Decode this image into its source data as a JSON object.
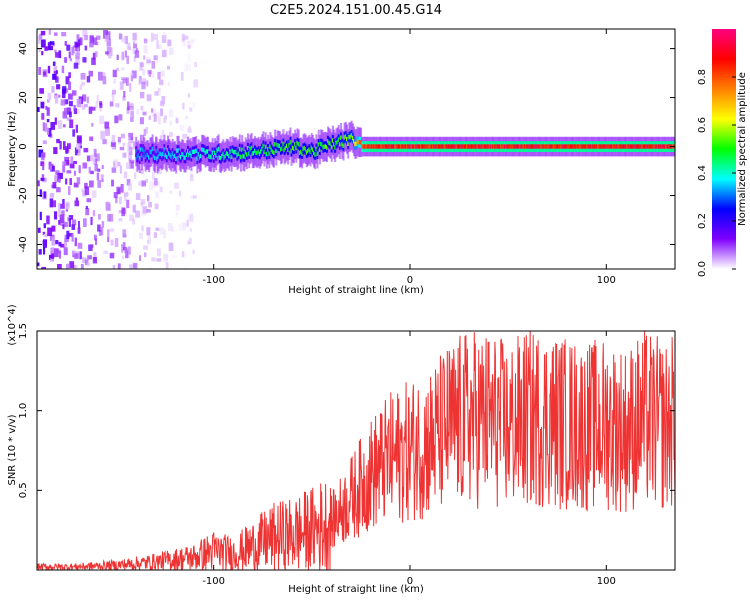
{
  "title": "C2E5.2024.151.00.45.G14",
  "chart_data": [
    {
      "type": "heatmap",
      "xlabel": "Height of straight line (km)",
      "ylabel": "Frequency (Hz)",
      "xlim": [
        -190,
        135
      ],
      "ylim": [
        -50,
        48
      ],
      "x_ticks": [
        "-100",
        "0",
        "100"
      ],
      "y_ticks": [
        "40",
        "20",
        "0",
        "-20",
        "-40"
      ],
      "colorbar": {
        "label": "Normalized spectral amplitude",
        "range": [
          0,
          1
        ],
        "ticks": [
          "0.0",
          "0.2",
          "0.4",
          "0.6",
          "0.8"
        ],
        "colors": [
          "#ffffff",
          "#7f00ff",
          "#0000ff",
          "#00ffff",
          "#00ff00",
          "#ffff00",
          "#ff8000",
          "#ff0000",
          "#ff0080"
        ]
      },
      "track": {
        "x": [
          -140,
          -120,
          -100,
          -80,
          -60,
          -50,
          -40,
          -30,
          -25,
          -20,
          -10,
          0,
          10,
          20,
          50,
          60,
          90,
          100,
          110,
          135
        ],
        "y": [
          -3,
          -3,
          -3,
          -2,
          0,
          -2,
          1,
          3,
          0,
          0,
          0,
          0,
          0,
          0,
          0,
          0,
          0,
          0,
          0,
          0
        ],
        "amplitude": [
          0.35,
          0.4,
          0.45,
          0.5,
          0.55,
          0.55,
          0.55,
          0.6,
          0.9,
          0.95,
          0.95,
          0.95,
          0.95,
          0.95,
          0.95,
          0.95,
          0.95,
          0.95,
          0.95,
          0.95
        ]
      },
      "noise_region_x": [
        -190,
        -110
      ],
      "grid": false
    },
    {
      "type": "line",
      "xlabel": "Height of straight line (km)",
      "ylabel": "SNR (10 * v/v)",
      "multiplier": "(x10^4)",
      "xlim": [
        -190,
        135
      ],
      "ylim": [
        0,
        1.5
      ],
      "x_ticks": [
        "-100",
        "0",
        "100"
      ],
      "y_ticks": [
        "1.5",
        "1.0",
        "0.5"
      ],
      "color": "#ee3333",
      "x": [
        -190,
        -170,
        -150,
        -130,
        -110,
        -100,
        -90,
        -80,
        -70,
        -60,
        -50,
        -40,
        -30,
        -20,
        -10,
        0,
        10,
        20,
        30,
        40,
        50,
        60,
        70,
        80,
        90,
        100,
        110,
        120,
        130,
        135
      ],
      "y": [
        0.02,
        0.02,
        0.03,
        0.05,
        0.08,
        0.12,
        0.1,
        0.15,
        0.2,
        0.22,
        0.25,
        0.3,
        0.45,
        0.6,
        0.7,
        0.75,
        0.8,
        0.9,
        0.95,
        0.95,
        0.9,
        0.95,
        0.95,
        0.92,
        0.9,
        0.92,
        0.88,
        0.95,
        0.9,
        0.95
      ],
      "grid": false
    }
  ]
}
